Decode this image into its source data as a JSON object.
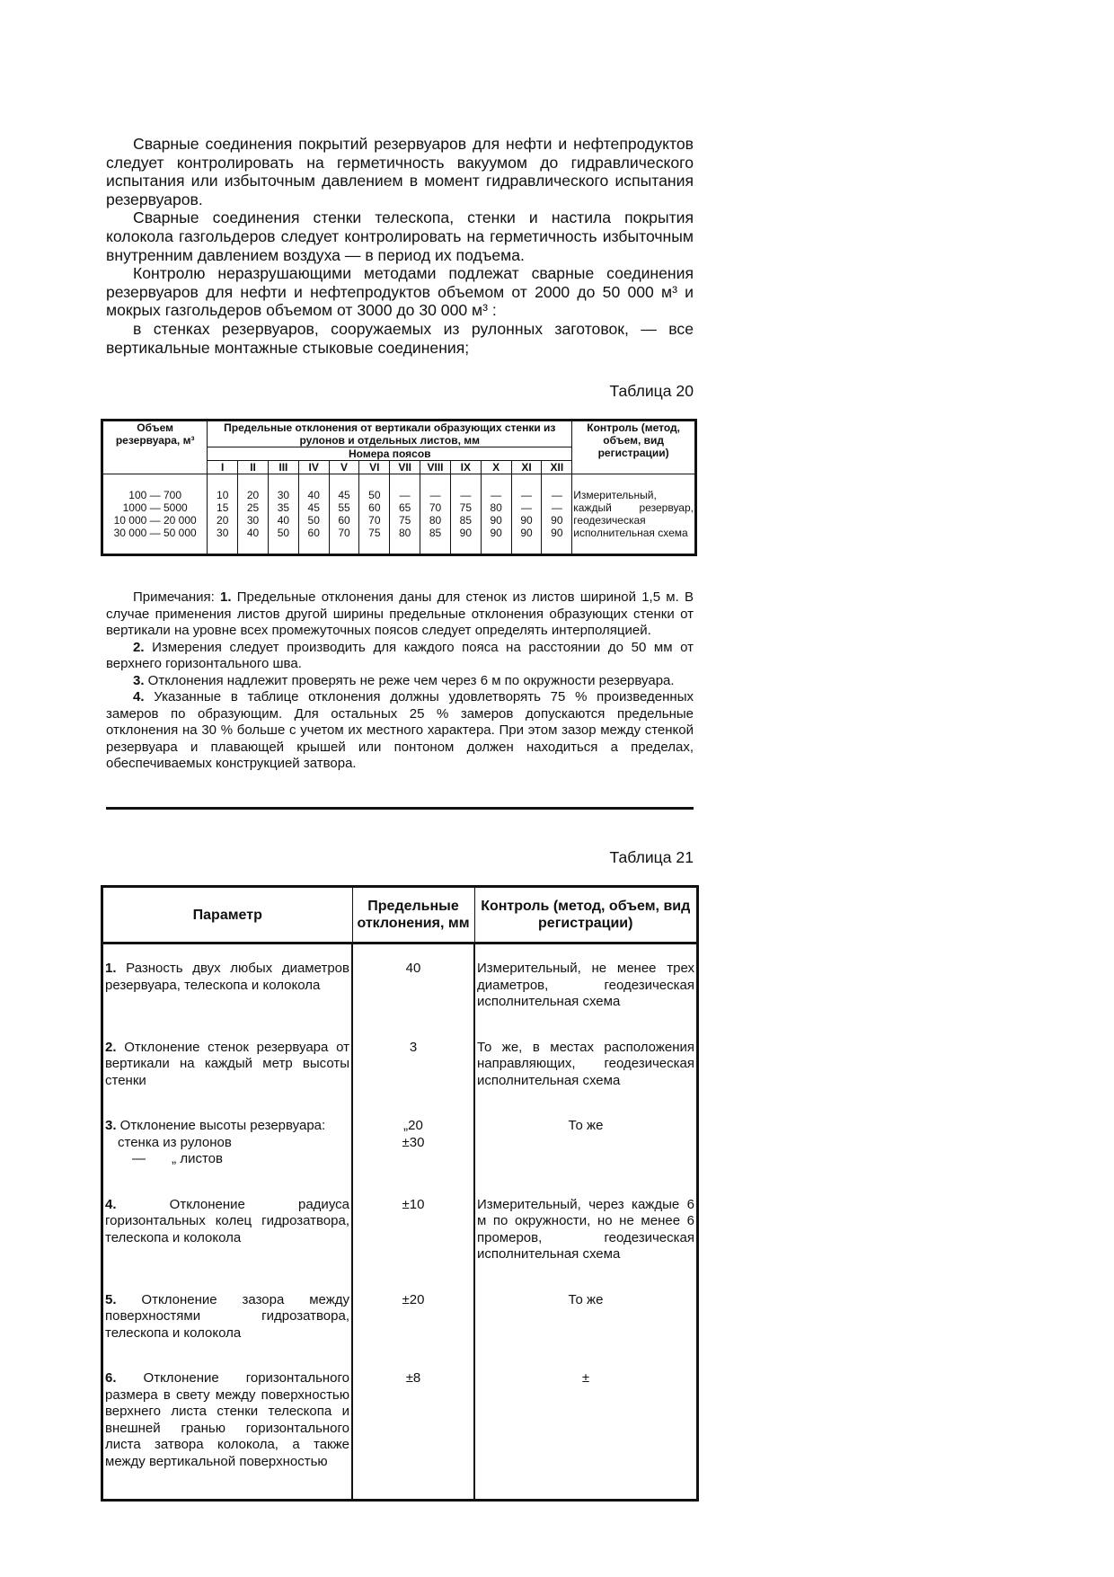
{
  "intro": [
    "Сварные соединения покрытий резервуаров для нефти и нефтепродуктов следует контролировать на герметичность вакуумом до гидравлического испытания или избыточным давлением в момент гидравлического испытания резервуаров.",
    "Сварные соединения стенки телескопа, стенки и настила покрытия колокола газгольдеров следует контролировать на герметичность избыточным внутренним давлением воздуха — в период их подъема.",
    "Контролю неразрушающими методами подлежат сварные соединения резервуаров для нефти и нефтепродуктов объемом от 2000 до 50 000 м³ и мокрых газгольдеров объемом от 3000 до 30 000 м³ :",
    "в стенках резервуаров, сооружаемых из рулонных заготовок, — все вертикальные монтажные стыковые соединения;"
  ],
  "table20": {
    "caption": "Таблица 20",
    "head_volume": "Объем резервуара, м³",
    "head_dev": "Предельные отклонения от вертикали образующих стенки из рулонов и отдельных листов, мм",
    "head_belts": "Номера поясов",
    "head_control": "Контроль (метод, объем, вид регистрации)",
    "belts": [
      "I",
      "II",
      "III",
      "IV",
      "V",
      "VI",
      "VII",
      "VIII",
      "IX",
      "X",
      "XI",
      "XII"
    ],
    "volumes": "100 — 700\n1000 — 5000\n10 000 — 20 000\n30 000 — 50 000",
    "columns": [
      "10\n15\n20\n30",
      "20\n25\n30\n40",
      "30\n35\n40\n50",
      "40\n45\n50\n60",
      "45\n55\n60\n70",
      "50\n60\n70\n75",
      "—\n65\n75\n80",
      "—\n70\n80\n85",
      "—\n75\n85\n90",
      "—\n80\n90\n90",
      "—\n—\n90\n90",
      "—\n—\n90\n90"
    ],
    "control": "Измерительный, каждый резервуар, геодезическая исполнительная схема"
  },
  "notes": [
    {
      "num": "",
      "lead": "Примечания: ",
      "bold": "1.",
      "text": " Предельные отклонения даны для стенок из листов шириной 1,5 м. В случае применения листов другой ширины предельные отклонения образующих стенки от вертикали на уровне всех промежуточных поясов следует определять интерполяцией."
    },
    {
      "lead": "",
      "bold": "2.",
      "text": " Измерения следует производить для каждого пояса на расстоянии до 50 мм от верхнего горизонтального шва."
    },
    {
      "lead": "",
      "bold": "3.",
      "text": " Отклонения надлежит проверять не реже чем через 6 м по окружности резервуара."
    },
    {
      "lead": "",
      "bold": "4.",
      "text": " Указанные в таблице отклонения должны удовлетворять 75 % произведенных замеров по образующим. Для остальных 25 % замеров допускаются предельные отклонения на 30 % больше с учетом их местного характера. При этом зазор между стенкой резервуара и плавающей крышей или понтоном должен находиться а пределах, обеспечиваемых конструкцией затвора."
    }
  ],
  "table21": {
    "caption": "Таблица 21",
    "headers": [
      "Параметр",
      "Предельные отклонения, мм",
      "Контроль (метод, объем, вид регистрации)"
    ],
    "rows": [
      {
        "num": "1.",
        "param": " Разность двух любых диаметров резервуара, телескопа и колокола",
        "value": "40",
        "control": "Измерительный, не менее трех диаметров, геодезическая исполнительная схема"
      },
      {
        "num": "2.",
        "param": " Отклонение стенок резервуара от вертикали на каждый метр высоты стенки",
        "value": "3",
        "control": "То же, в местах расположения направляющих, геодезическая исполнительная схема"
      },
      {
        "num": "3.",
        "param": " Отклонение высоты резервуара:",
        "sub1": "стенка из рулонов",
        "sub2": "—       „ листов",
        "value": "",
        "value1": "„20",
        "value2": "±30",
        "control": "То же"
      },
      {
        "num": "4.",
        "param": " Отклонение радиуса горизонтальных колец гидрозатвора, телескопа и колокола",
        "value": "±10",
        "control": "Измерительный, через каждые 6 м по окружности, но не менее 6 промеров, геодезическая исполнительная схема"
      },
      {
        "num": "5.",
        "param": " Отклонение зазора между поверхностями гидрозатвора, телескопа и колокола",
        "value": "±20",
        "control": "То же"
      },
      {
        "num": "6.",
        "param": " Отклонение горизонтального размера в свету между поверхностью верхнего листа стенки телескопа и внешней гранью горизонтального листа затвора колокола, а также между вертикальной поверхностью",
        "value": "±8",
        "control": "±"
      }
    ]
  }
}
